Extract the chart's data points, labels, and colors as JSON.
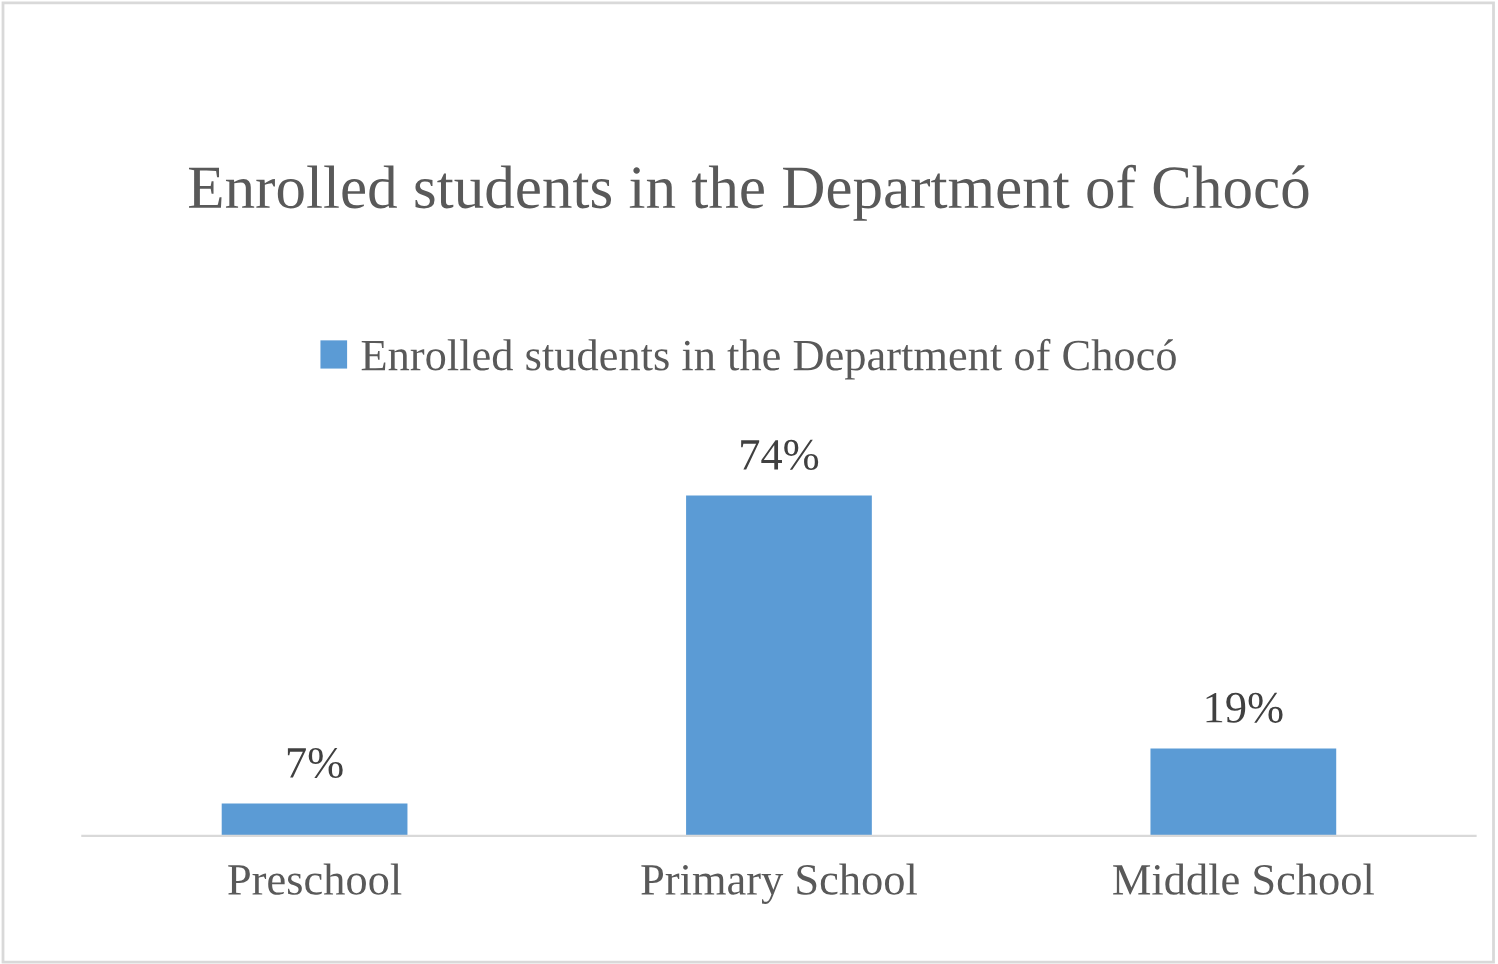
{
  "chart_data": {
    "type": "bar",
    "title": "Enrolled students in the Department of Chocó",
    "categories": [
      "Preschool",
      "Primary School",
      "Middle School"
    ],
    "series": [
      {
        "name": "Enrolled students in the Department of Chocó",
        "color": "#5b9bd5",
        "values": [
          7,
          74,
          19
        ],
        "value_labels": [
          "7%",
          "74%",
          "19%"
        ]
      }
    ],
    "legend": "top",
    "grid": false,
    "tick_labels": "x"
  }
}
